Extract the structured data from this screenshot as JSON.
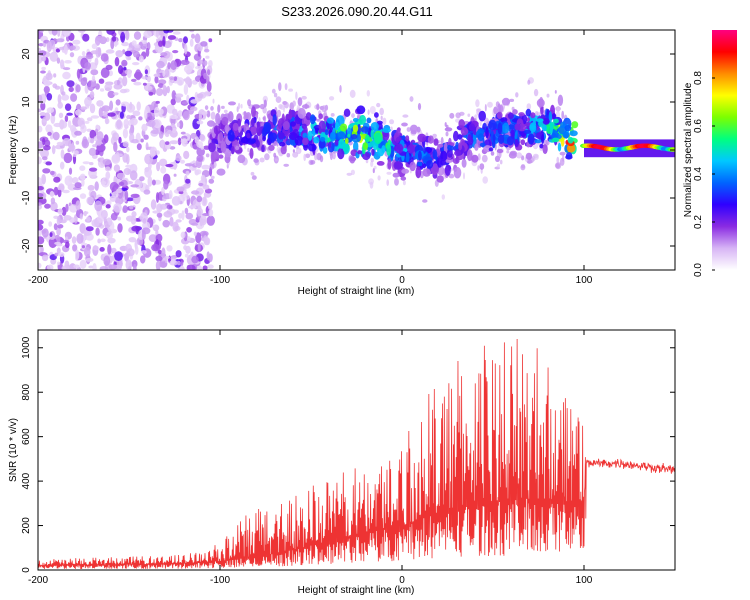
{
  "figure_title": "S233.2026.090.20.44.G11",
  "colors": {
    "snr_line": "#ee3333",
    "snr_flat": "#ee3333",
    "axis": "#000000"
  },
  "chart_data": [
    {
      "type": "heatmap",
      "title": "S233.2026.090.20.44.G11",
      "xlabel": "Height of straight line (km)",
      "ylabel": "Frequency (Hz)",
      "xlim": [
        -200,
        150
      ],
      "ylim": [
        -25,
        25
      ],
      "xticks": [
        -200,
        -100,
        0,
        100
      ],
      "xtick_labels": [
        "-200",
        "-100",
        "0",
        "100"
      ],
      "yticks": [
        -20,
        -10,
        0,
        10,
        20
      ],
      "ytick_labels": [
        "-20",
        "-10",
        "0",
        "10",
        "20"
      ],
      "colorbar": {
        "label": "Normalized spectral amplitude",
        "range": [
          0,
          1
        ],
        "ticks": [
          0.0,
          0.2,
          0.4,
          0.6,
          0.8
        ],
        "tick_labels": [
          "0.0",
          "0.2",
          "0.4",
          "0.6",
          "0.8"
        ],
        "colormap": [
          "#ffffff",
          "#d7b4f5",
          "#8a2be2",
          "#2f00ff",
          "#0064ff",
          "#00c8ff",
          "#00ff80",
          "#7cff00",
          "#ffff00",
          "#ff8c00",
          "#ff0000",
          "#ff0080"
        ]
      },
      "ridge": {
        "x": [
          -120,
          -100,
          -80,
          -60,
          -40,
          -20,
          0,
          20,
          40,
          60,
          80,
          100,
          150
        ],
        "freq": [
          1,
          2,
          4,
          4,
          3,
          3,
          0,
          -2,
          3,
          4,
          5,
          1,
          0
        ],
        "amplitude": [
          0.15,
          0.2,
          0.25,
          0.3,
          0.45,
          0.55,
          0.35,
          0.25,
          0.3,
          0.3,
          0.4,
          0.95,
          0.95
        ]
      }
    },
    {
      "type": "line",
      "xlabel": "Height of straight line (km)",
      "ylabel": "SNR (10 * v/v)",
      "xlim": [
        -200,
        150
      ],
      "ylim": [
        0,
        1080
      ],
      "xticks": [
        -200,
        -100,
        0,
        100
      ],
      "xtick_labels": [
        "-200",
        "-100",
        "0",
        "100"
      ],
      "yticks": [
        0,
        200,
        400,
        600,
        800,
        1000
      ],
      "ytick_labels": [
        "0",
        "200",
        "400",
        "600",
        "800",
        "1000"
      ],
      "envelope": {
        "x": [
          -200,
          -150,
          -120,
          -100,
          -80,
          -60,
          -40,
          -20,
          0,
          10,
          20,
          40,
          60,
          80,
          100,
          101,
          120,
          150
        ],
        "base": [
          20,
          25,
          30,
          40,
          60,
          90,
          130,
          170,
          200,
          230,
          260,
          300,
          320,
          320,
          300,
          480,
          480,
          450
        ],
        "peak": [
          50,
          60,
          70,
          120,
          300,
          360,
          420,
          480,
          620,
          720,
          900,
          1020,
          1080,
          1000,
          780,
          500,
          500,
          470
        ]
      }
    }
  ]
}
